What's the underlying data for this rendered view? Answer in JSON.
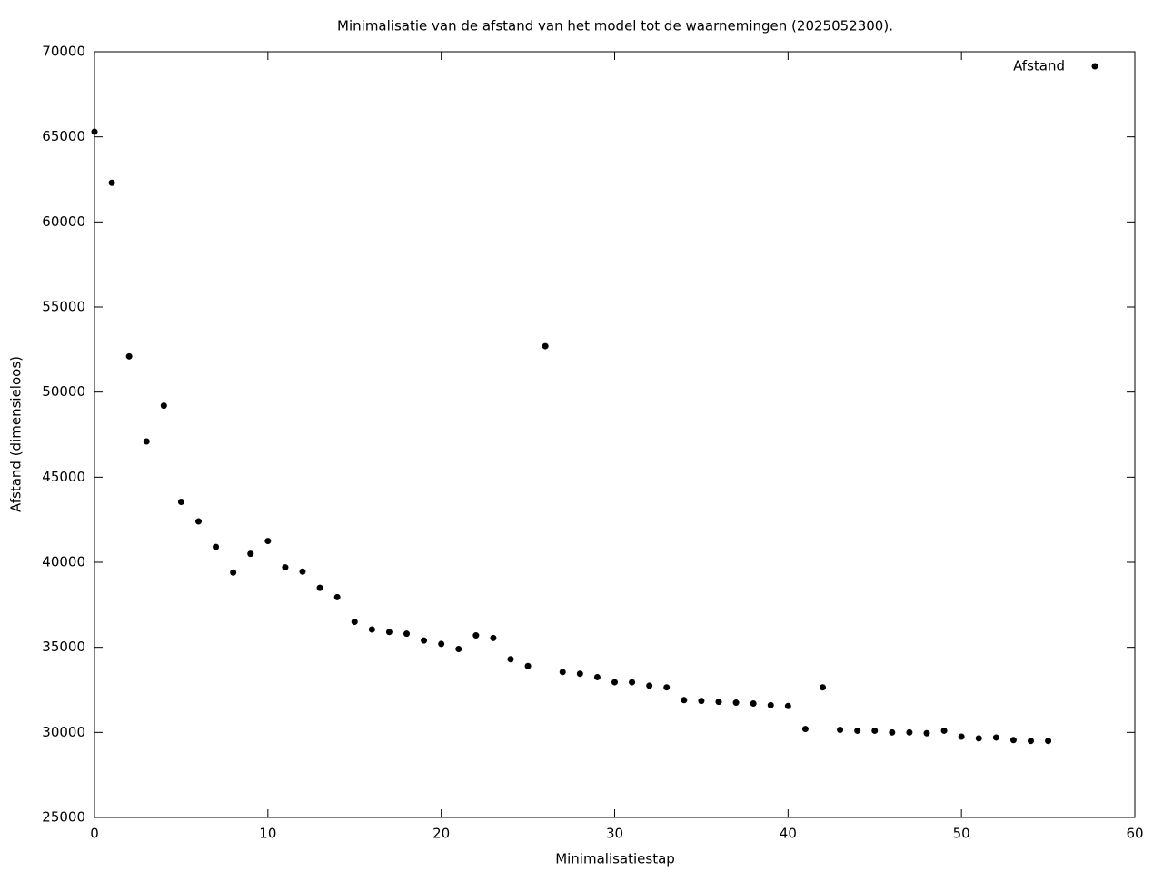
{
  "chart_data": {
    "type": "scatter",
    "title": "Minimalisatie van de afstand van het model tot de waarnemingen (2025052300).",
    "xlabel": "Minimalisatiestap",
    "ylabel": "Afstand (dimensieloos)",
    "x": [
      0,
      1,
      2,
      3,
      4,
      5,
      6,
      7,
      8,
      9,
      10,
      11,
      12,
      13,
      14,
      15,
      16,
      17,
      18,
      19,
      20,
      21,
      22,
      23,
      24,
      25,
      26,
      27,
      28,
      29,
      30,
      31,
      32,
      33,
      34,
      35,
      36,
      37,
      38,
      39,
      40,
      41,
      42,
      43,
      44,
      45,
      46,
      47,
      48,
      49,
      50,
      51,
      52,
      53,
      54,
      55
    ],
    "series": [
      {
        "name": "Afstand",
        "color": "#000000",
        "values": [
          65300,
          62300,
          52100,
          47100,
          49200,
          43550,
          42400,
          40900,
          39400,
          40500,
          41250,
          39700,
          39450,
          38500,
          37950,
          36500,
          36050,
          35900,
          35800,
          35400,
          35200,
          34900,
          35700,
          35550,
          34300,
          33900,
          52700,
          33550,
          33450,
          33250,
          32950,
          32950,
          32750,
          32650,
          31900,
          31850,
          31800,
          31750,
          31700,
          31600,
          31550,
          30200,
          32650,
          30150,
          30100,
          30100,
          30000,
          30000,
          29950,
          30100,
          29750,
          29650,
          29700,
          29550,
          29500,
          29500
        ]
      }
    ],
    "xlim": [
      0,
      60
    ],
    "ylim": [
      25000,
      70000
    ],
    "xticks": [
      0,
      10,
      20,
      30,
      40,
      50,
      60
    ],
    "yticks": [
      25000,
      30000,
      35000,
      40000,
      45000,
      50000,
      55000,
      60000,
      65000,
      70000
    ],
    "legend": "top-right"
  }
}
